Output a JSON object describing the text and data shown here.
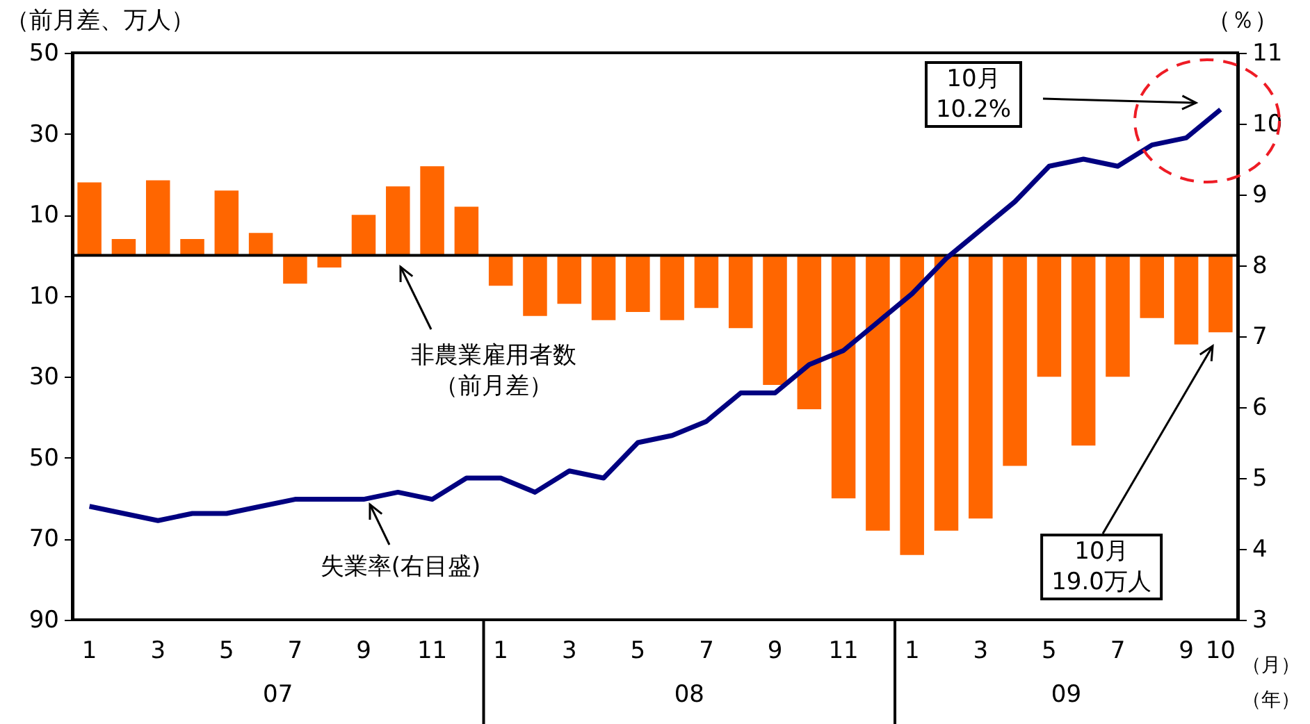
{
  "chart_data": {
    "type": "bar",
    "ylabel": "（前月差、万人）",
    "y2label": "（％）",
    "xlabel": "（月）",
    "categories": [
      "1",
      null,
      "3",
      null,
      "5",
      null,
      "7",
      null,
      "9",
      null,
      "11",
      null,
      "1",
      null,
      "3",
      null,
      "5",
      null,
      "7",
      null,
      "9",
      null,
      "11",
      null,
      "1",
      null,
      "3",
      null,
      "5",
      null,
      "7",
      null,
      "9",
      "10"
    ],
    "series": [
      {
        "color": "#ff6600",
        "values": [
          18,
          4,
          18.5,
          4,
          16,
          5.5,
          -7,
          -3,
          10,
          17,
          22,
          12,
          -7.5,
          -15,
          -12,
          -16,
          -14,
          -16,
          -13,
          -18,
          -32,
          -38,
          -60,
          -68,
          -74,
          -68,
          -65,
          -52,
          -30,
          -47,
          -30,
          -15.5,
          -22,
          -19.0
        ]
      },
      {
        "type": "line",
        "axis": "y2",
        "color": "#000080",
        "values": [
          4.6,
          4.5,
          4.4,
          4.5,
          4.5,
          4.6,
          4.7,
          4.7,
          4.7,
          4.8,
          4.7,
          5.0,
          5.0,
          4.8,
          5.1,
          5.0,
          5.5,
          5.6,
          5.8,
          6.2,
          6.2,
          6.6,
          6.8,
          7.2,
          7.6,
          8.1,
          8.5,
          8.9,
          9.4,
          9.5,
          9.4,
          9.7,
          9.8,
          10.2
        ]
      }
    ],
    "ylim": [
      -90,
      50
    ],
    "yticks": [
      50,
      30,
      10,
      {
        "value": -10,
        "label": "10"
      },
      {
        "value": -30,
        "label": "30"
      },
      {
        "value": -50,
        "label": "50"
      },
      {
        "value": -70,
        "label": "70"
      },
      {
        "value": -90,
        "label": "90"
      }
    ],
    "y2lim": [
      3,
      11
    ],
    "y2ticks": [
      3,
      4,
      5,
      6,
      7,
      8,
      9,
      10,
      11
    ],
    "ref_lines": [
      {
        "axis": "y",
        "value": 0
      }
    ],
    "annotations": [
      "10月\n10.2%",
      "10月\n19.0万人",
      "非農業雇用者数（前月差）",
      "失業率(右目盛)",
      "07",
      "08",
      "09",
      "（年）"
    ],
    "grid": false
  }
}
